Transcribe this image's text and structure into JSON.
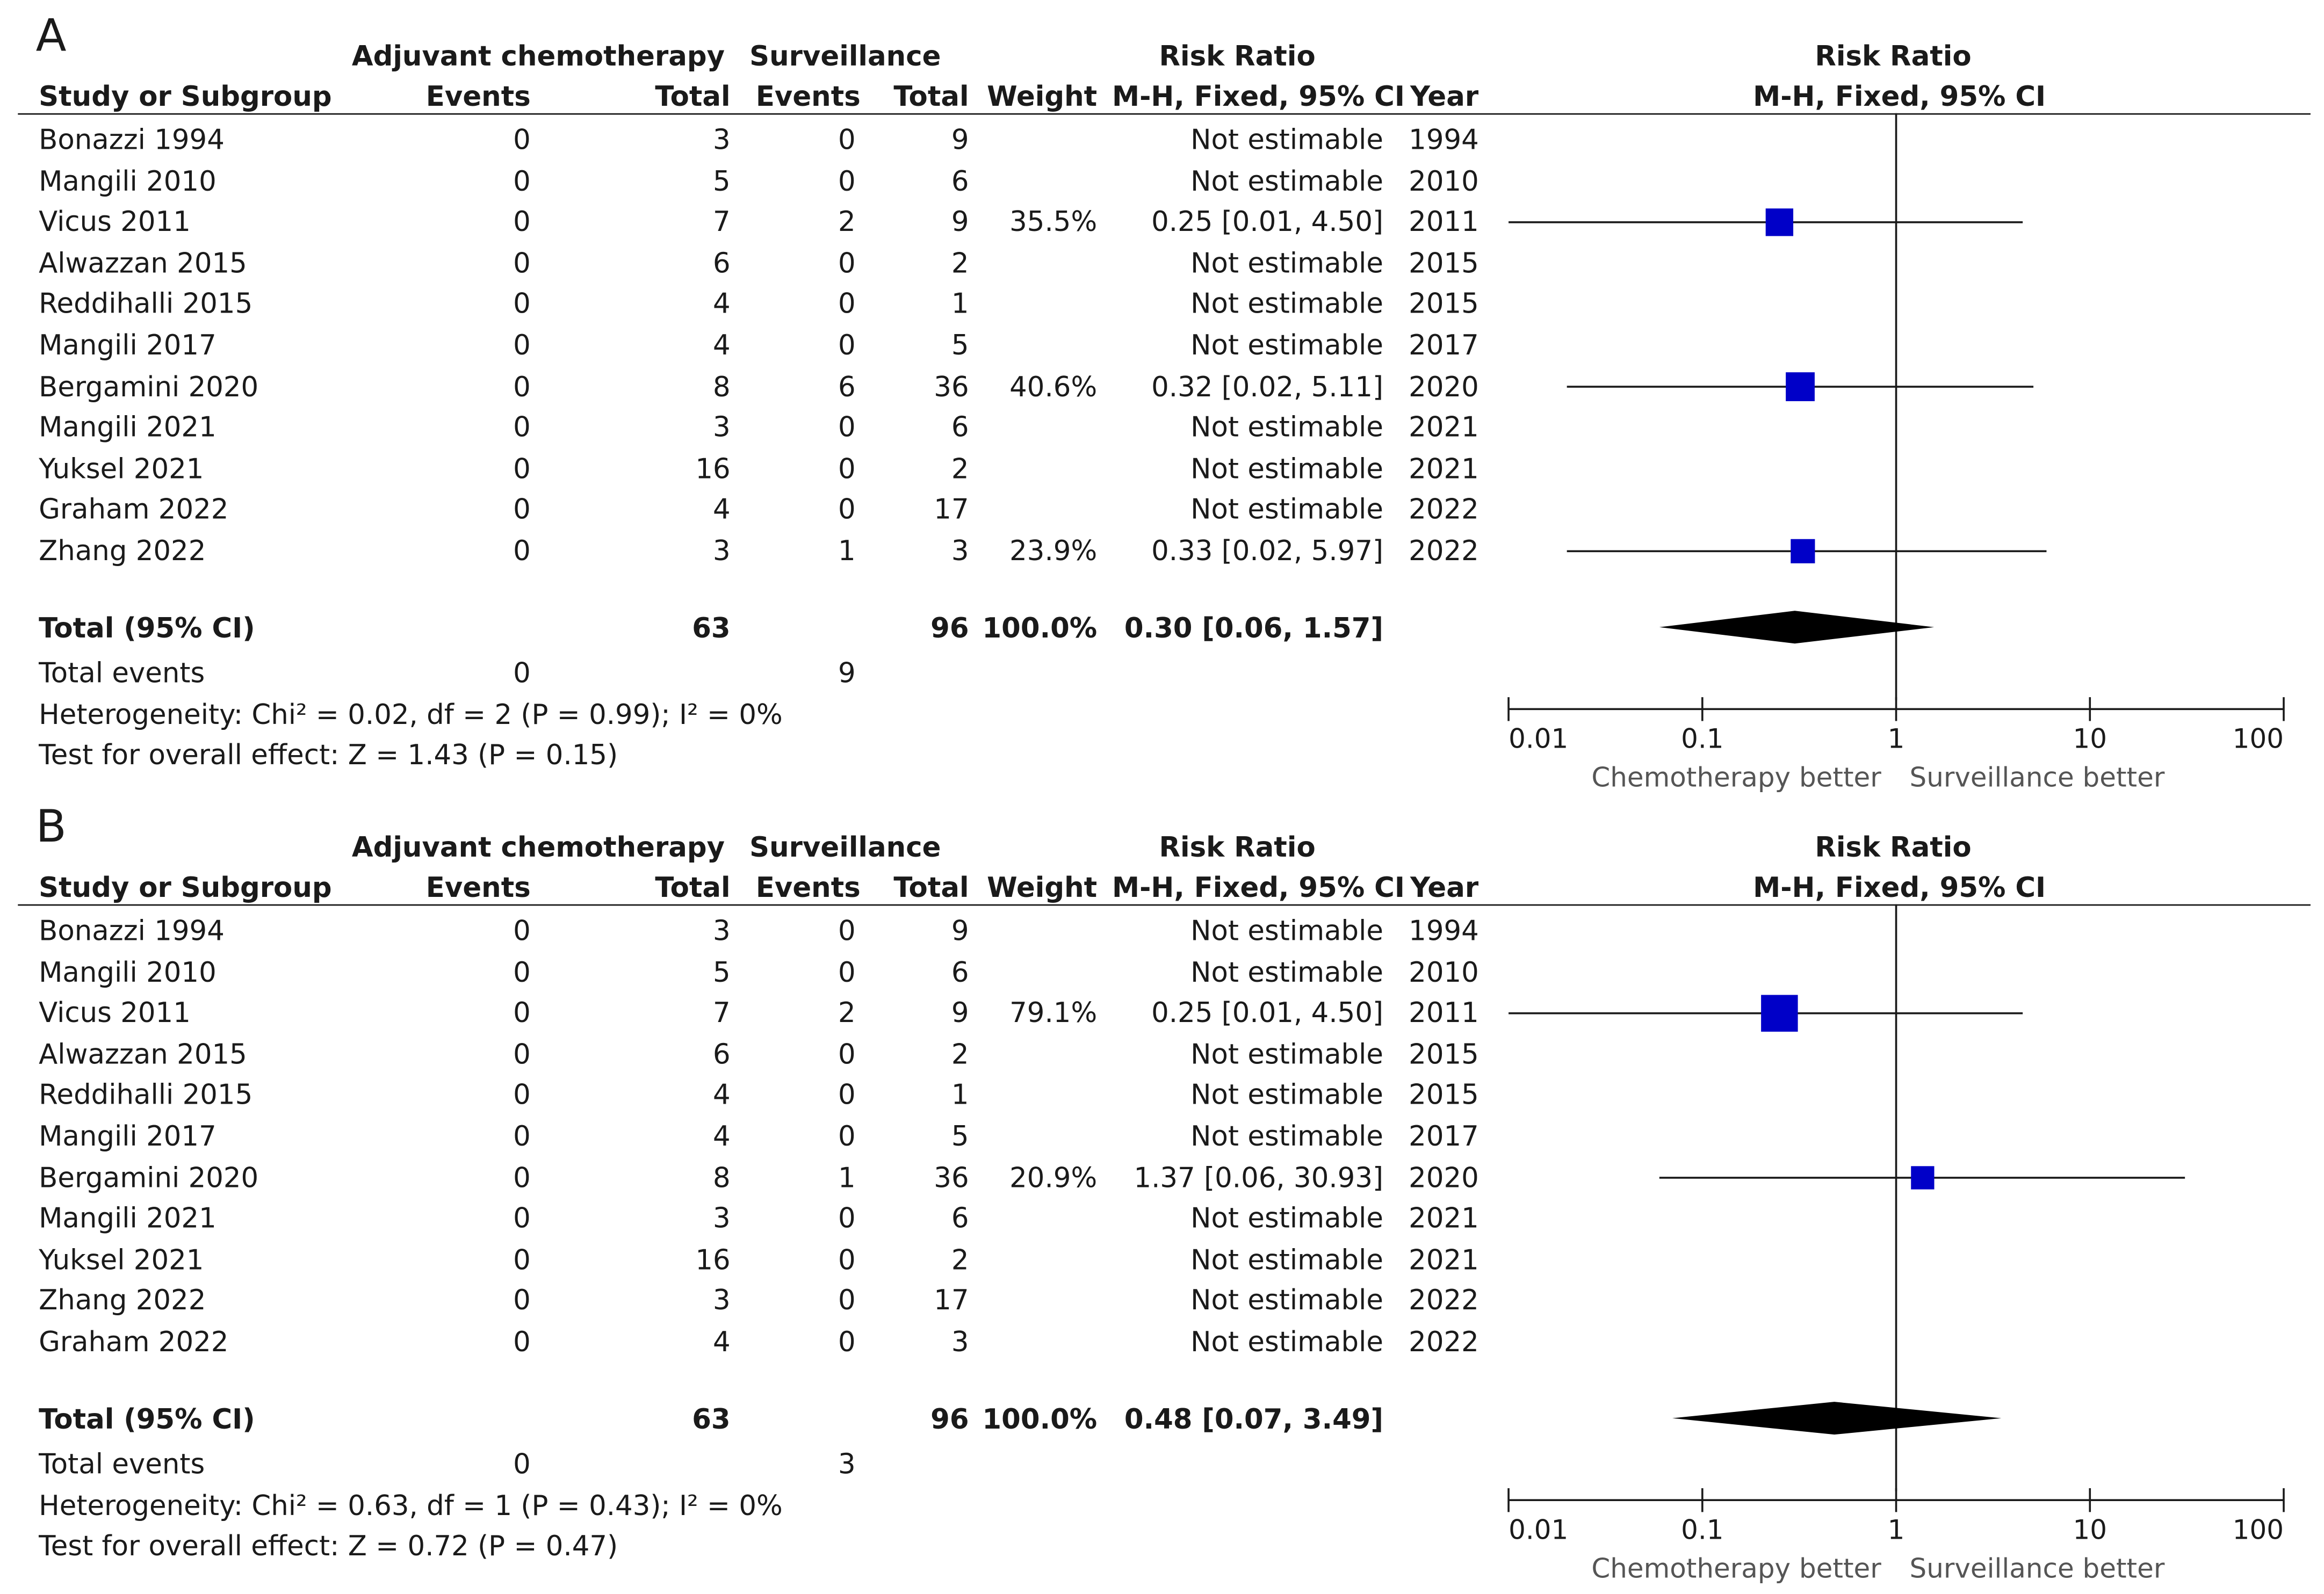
{
  "headers": {
    "adj_group": "Adjuvant chemotherapy",
    "surv_group": "Surveillance",
    "rr_group": "Risk Ratio",
    "study": "Study or Subgroup",
    "events": "Events",
    "total": "Total",
    "weight": "Weight",
    "method": "M-H, Fixed, 95% CI",
    "year": "Year",
    "plot_title": "Risk Ratio",
    "plot_method": "M-H, Fixed, 95% CI"
  },
  "chart_data": [
    {
      "type": "forest",
      "panel": "A",
      "scale": "log",
      "xlim": [
        0.01,
        100
      ],
      "ticks": [
        "0.01",
        "0.1",
        "1",
        "10",
        "100"
      ],
      "left_label": "Chemotherapy better",
      "right_label": "Surveillance better",
      "rows": [
        {
          "study": "Bonazzi 1994",
          "e1": "0",
          "n1": "3",
          "e2": "0",
          "n2": "9",
          "weight": "",
          "rr": "Not estimable",
          "year": "1994",
          "est": null,
          "lo": null,
          "hi": null,
          "w": 0
        },
        {
          "study": "Mangili 2010",
          "e1": "0",
          "n1": "5",
          "e2": "0",
          "n2": "6",
          "weight": "",
          "rr": "Not estimable",
          "year": "2010",
          "est": null,
          "lo": null,
          "hi": null,
          "w": 0
        },
        {
          "study": "Vicus 2011",
          "e1": "0",
          "n1": "7",
          "e2": "2",
          "n2": "9",
          "weight": "35.5%",
          "rr": "0.25 [0.01, 4.50]",
          "year": "2011",
          "est": 0.25,
          "lo": 0.01,
          "hi": 4.5,
          "w": 35.5
        },
        {
          "study": "Alwazzan 2015",
          "e1": "0",
          "n1": "6",
          "e2": "0",
          "n2": "2",
          "weight": "",
          "rr": "Not estimable",
          "year": "2015",
          "est": null,
          "lo": null,
          "hi": null,
          "w": 0
        },
        {
          "study": "Reddihalli 2015",
          "e1": "0",
          "n1": "4",
          "e2": "0",
          "n2": "1",
          "weight": "",
          "rr": "Not estimable",
          "year": "2015",
          "est": null,
          "lo": null,
          "hi": null,
          "w": 0
        },
        {
          "study": "Mangili 2017",
          "e1": "0",
          "n1": "4",
          "e2": "0",
          "n2": "5",
          "weight": "",
          "rr": "Not estimable",
          "year": "2017",
          "est": null,
          "lo": null,
          "hi": null,
          "w": 0
        },
        {
          "study": "Bergamini 2020",
          "e1": "0",
          "n1": "8",
          "e2": "6",
          "n2": "36",
          "weight": "40.6%",
          "rr": "0.32 [0.02, 5.11]",
          "year": "2020",
          "est": 0.32,
          "lo": 0.02,
          "hi": 5.11,
          "w": 40.6
        },
        {
          "study": "Mangili 2021",
          "e1": "0",
          "n1": "3",
          "e2": "0",
          "n2": "6",
          "weight": "",
          "rr": "Not estimable",
          "year": "2021",
          "est": null,
          "lo": null,
          "hi": null,
          "w": 0
        },
        {
          "study": "Yuksel 2021",
          "e1": "0",
          "n1": "16",
          "e2": "0",
          "n2": "2",
          "weight": "",
          "rr": "Not estimable",
          "year": "2021",
          "est": null,
          "lo": null,
          "hi": null,
          "w": 0
        },
        {
          "study": "Graham 2022",
          "e1": "0",
          "n1": "4",
          "e2": "0",
          "n2": "17",
          "weight": "",
          "rr": "Not estimable",
          "year": "2022",
          "est": null,
          "lo": null,
          "hi": null,
          "w": 0
        },
        {
          "study": "Zhang 2022",
          "e1": "0",
          "n1": "3",
          "e2": "1",
          "n2": "3",
          "weight": "23.9%",
          "rr": "0.33 [0.02, 5.97]",
          "year": "2022",
          "est": 0.33,
          "lo": 0.02,
          "hi": 5.97,
          "w": 23.9
        }
      ],
      "total": {
        "label": "Total (95% CI)",
        "n1": "63",
        "n2": "96",
        "weight": "100.0%",
        "rr": "0.30 [0.06, 1.57]",
        "est": 0.3,
        "lo": 0.06,
        "hi": 1.57
      },
      "total_events": {
        "label": "Total events",
        "e1": "0",
        "e2": "9"
      },
      "heterogeneity": "Heterogeneity: Chi² = 0.02, df = 2 (P = 0.99); I² = 0%",
      "overall": "Test for overall effect: Z = 1.43 (P = 0.15)"
    },
    {
      "type": "forest",
      "panel": "B",
      "scale": "log",
      "xlim": [
        0.01,
        100
      ],
      "ticks": [
        "0.01",
        "0.1",
        "1",
        "10",
        "100"
      ],
      "left_label": "Chemotherapy better",
      "right_label": "Surveillance better",
      "rows": [
        {
          "study": "Bonazzi 1994",
          "e1": "0",
          "n1": "3",
          "e2": "0",
          "n2": "9",
          "weight": "",
          "rr": "Not estimable",
          "year": "1994",
          "est": null,
          "lo": null,
          "hi": null,
          "w": 0
        },
        {
          "study": "Mangili 2010",
          "e1": "0",
          "n1": "5",
          "e2": "0",
          "n2": "6",
          "weight": "",
          "rr": "Not estimable",
          "year": "2010",
          "est": null,
          "lo": null,
          "hi": null,
          "w": 0
        },
        {
          "study": "Vicus 2011",
          "e1": "0",
          "n1": "7",
          "e2": "2",
          "n2": "9",
          "weight": "79.1%",
          "rr": "0.25 [0.01, 4.50]",
          "year": "2011",
          "est": 0.25,
          "lo": 0.01,
          "hi": 4.5,
          "w": 79.1
        },
        {
          "study": "Alwazzan 2015",
          "e1": "0",
          "n1": "6",
          "e2": "0",
          "n2": "2",
          "weight": "",
          "rr": "Not estimable",
          "year": "2015",
          "est": null,
          "lo": null,
          "hi": null,
          "w": 0
        },
        {
          "study": "Reddihalli 2015",
          "e1": "0",
          "n1": "4",
          "e2": "0",
          "n2": "1",
          "weight": "",
          "rr": "Not estimable",
          "year": "2015",
          "est": null,
          "lo": null,
          "hi": null,
          "w": 0
        },
        {
          "study": "Mangili 2017",
          "e1": "0",
          "n1": "4",
          "e2": "0",
          "n2": "5",
          "weight": "",
          "rr": "Not estimable",
          "year": "2017",
          "est": null,
          "lo": null,
          "hi": null,
          "w": 0
        },
        {
          "study": "Bergamini 2020",
          "e1": "0",
          "n1": "8",
          "e2": "1",
          "n2": "36",
          "weight": "20.9%",
          "rr": "1.37 [0.06, 30.93]",
          "year": "2020",
          "est": 1.37,
          "lo": 0.06,
          "hi": 30.93,
          "w": 20.9
        },
        {
          "study": "Mangili 2021",
          "e1": "0",
          "n1": "3",
          "e2": "0",
          "n2": "6",
          "weight": "",
          "rr": "Not estimable",
          "year": "2021",
          "est": null,
          "lo": null,
          "hi": null,
          "w": 0
        },
        {
          "study": "Yuksel 2021",
          "e1": "0",
          "n1": "16",
          "e2": "0",
          "n2": "2",
          "weight": "",
          "rr": "Not estimable",
          "year": "2021",
          "est": null,
          "lo": null,
          "hi": null,
          "w": 0
        },
        {
          "study": "Zhang 2022",
          "e1": "0",
          "n1": "3",
          "e2": "0",
          "n2": "17",
          "weight": "",
          "rr": "Not estimable",
          "year": "2022",
          "est": null,
          "lo": null,
          "hi": null,
          "w": 0
        },
        {
          "study": "Graham 2022",
          "e1": "0",
          "n1": "4",
          "e2": "0",
          "n2": "3",
          "weight": "",
          "rr": "Not estimable",
          "year": "2022",
          "est": null,
          "lo": null,
          "hi": null,
          "w": 0
        }
      ],
      "total": {
        "label": "Total (95% CI)",
        "n1": "63",
        "n2": "96",
        "weight": "100.0%",
        "rr": "0.48 [0.07, 3.49]",
        "est": 0.48,
        "lo": 0.07,
        "hi": 3.49
      },
      "total_events": {
        "label": "Total events",
        "e1": "0",
        "e2": "3"
      },
      "heterogeneity": "Heterogeneity: Chi² = 0.63, df = 1 (P = 0.43); I² = 0%",
      "overall": "Test for overall effect: Z = 0.72 (P = 0.47)"
    }
  ],
  "colors": {
    "marker": "#0000c8",
    "line": "#1a1a1a",
    "diamond": "#000000",
    "label_grey": "#555555"
  }
}
